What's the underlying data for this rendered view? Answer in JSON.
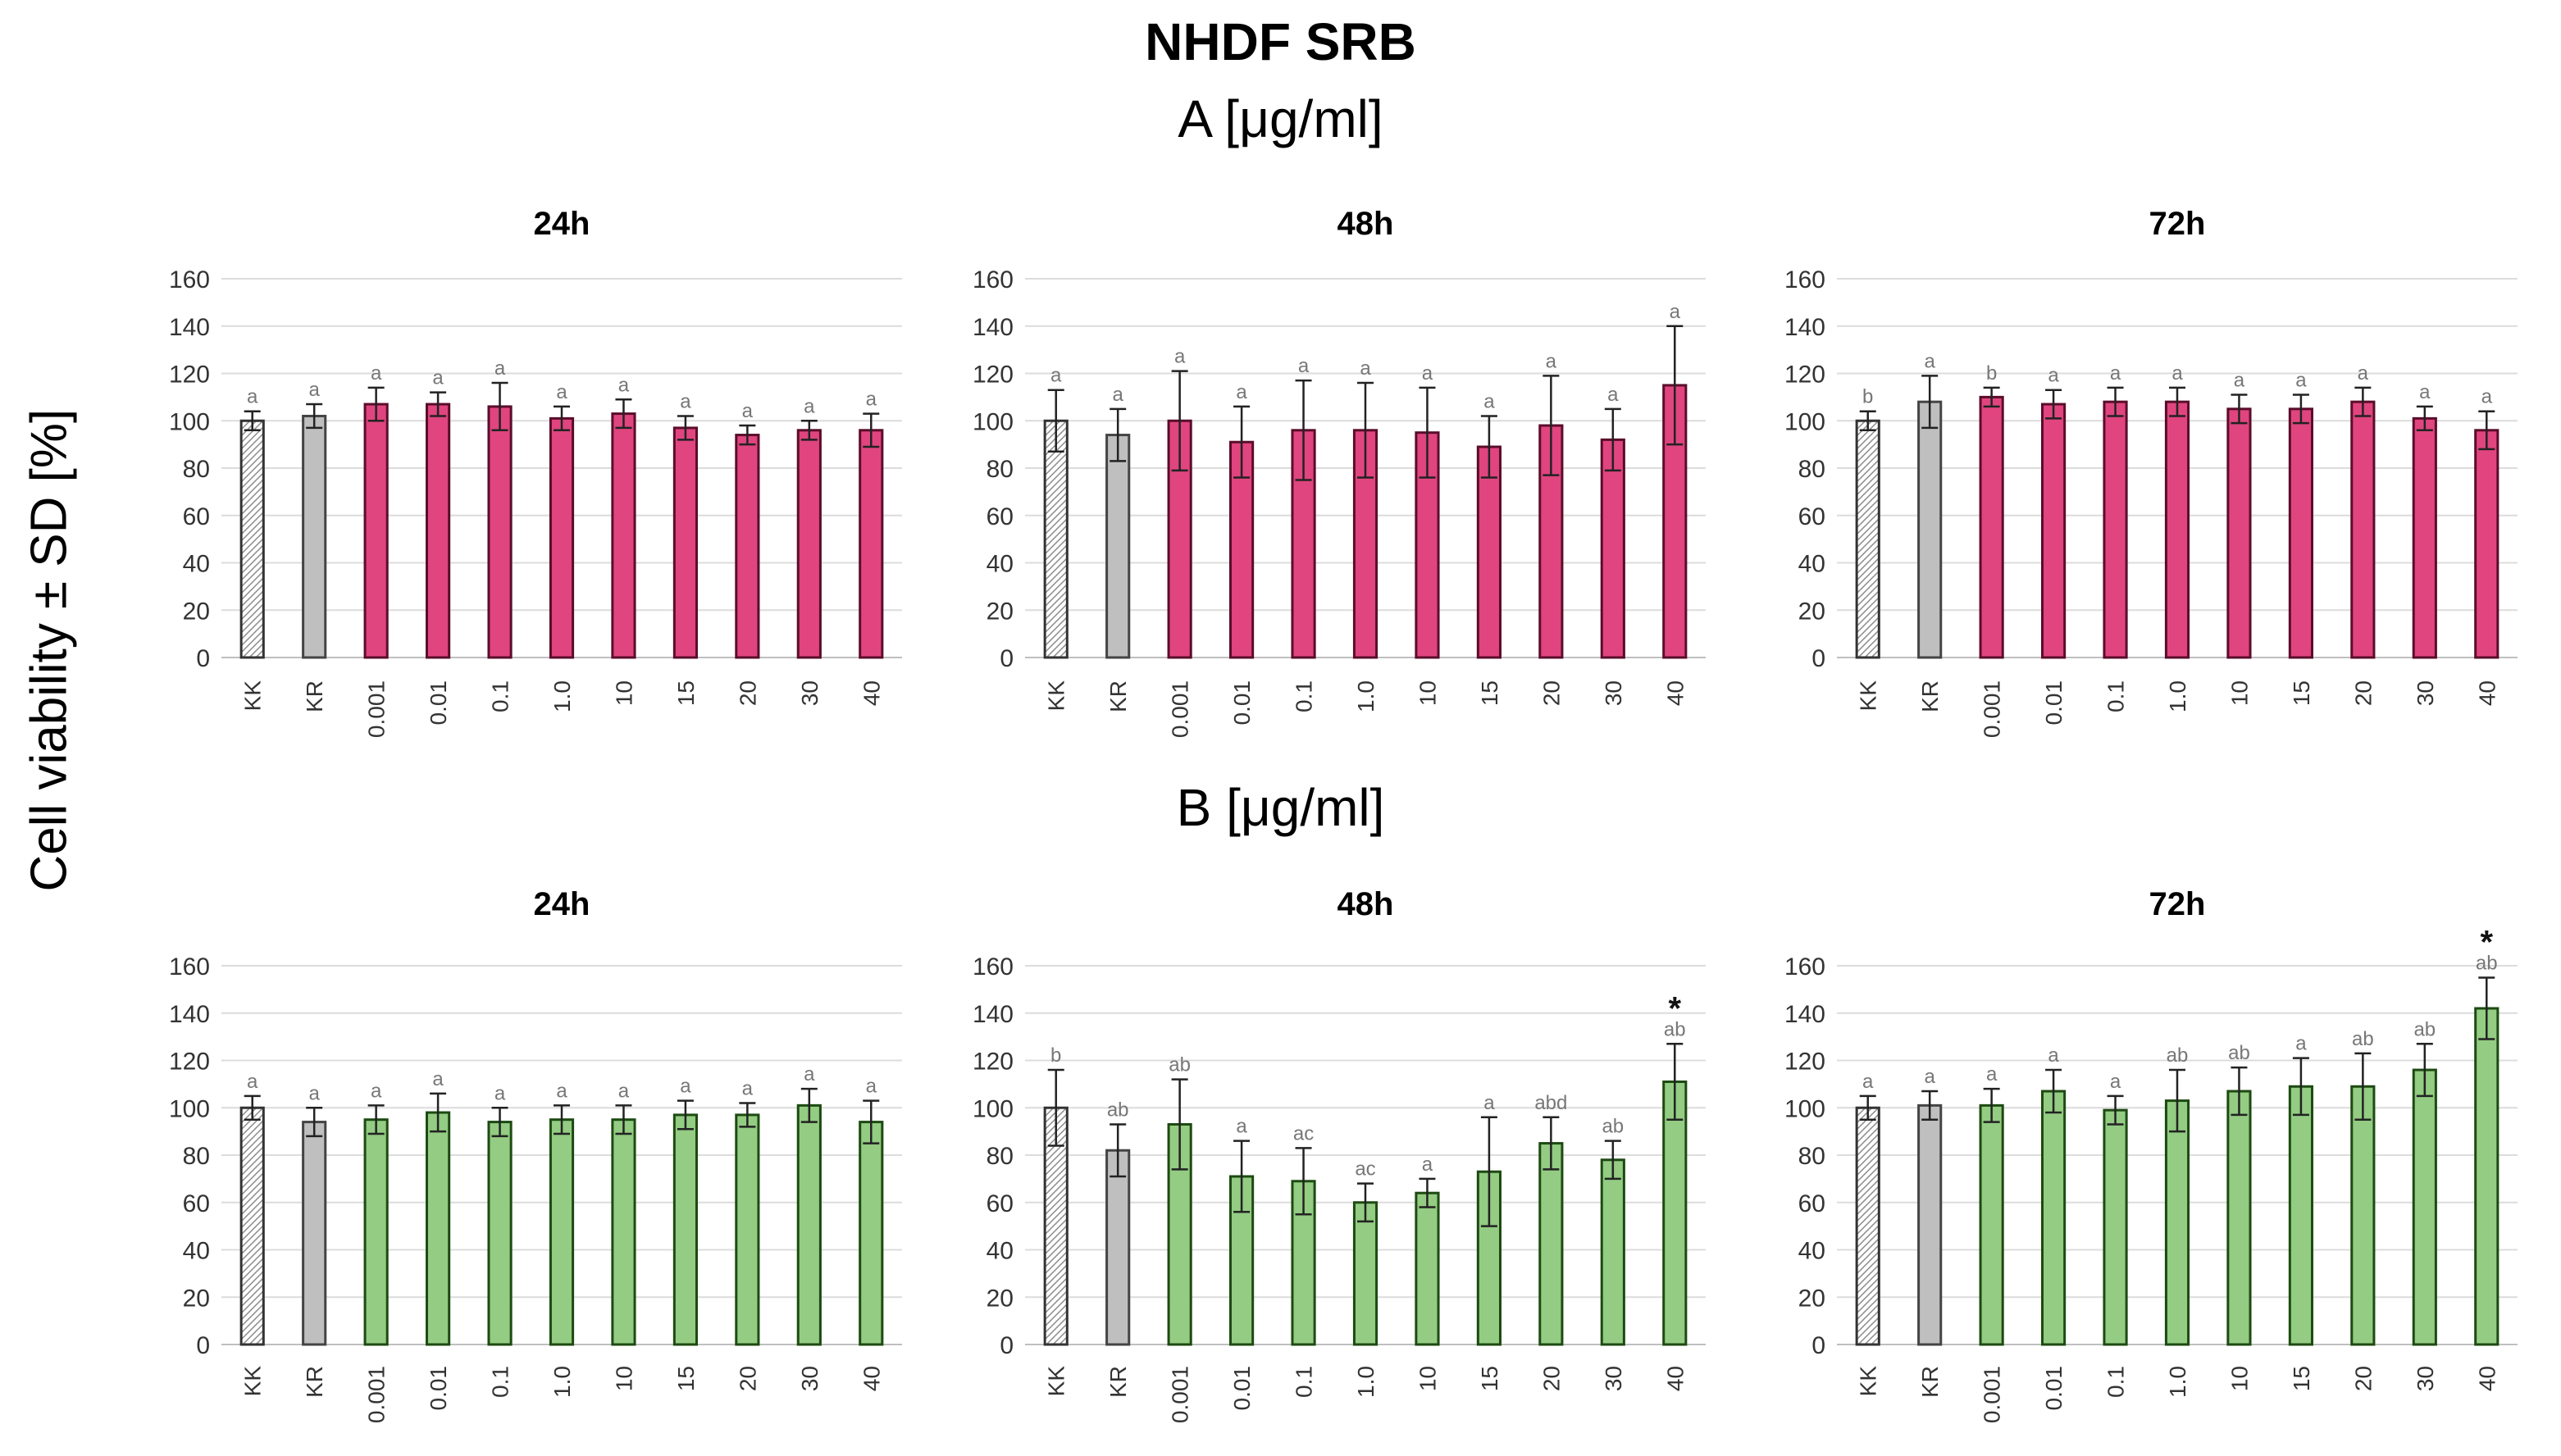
{
  "title": "NHDF SRB",
  "y_axis_label": "Cell viability ± SD [%]",
  "sections": [
    {
      "title": "A [μg/ml]",
      "bar_color": "#e0457f",
      "outline_color": "#5a0d2a"
    },
    {
      "title": "B [μg/ml]",
      "bar_color": "#93cc82",
      "outline_color": "#1d4a12"
    }
  ],
  "control_colors": {
    "KK": "#ffffff",
    "KR": "#bfbfbf"
  },
  "chart_data": [
    {
      "type": "bar",
      "section": "A",
      "title": "24h",
      "categories": [
        "KK",
        "KR",
        "0.001",
        "0.01",
        "0.1",
        "1.0",
        "10",
        "15",
        "20",
        "30",
        "40"
      ],
      "values": [
        100,
        102,
        107,
        107,
        106,
        101,
        103,
        97,
        94,
        96,
        96
      ],
      "errors": [
        4,
        5,
        7,
        5,
        10,
        5,
        6,
        5,
        4,
        4,
        7
      ],
      "labels": [
        "a",
        "a",
        "a",
        "a",
        "a",
        "a",
        "a",
        "a",
        "a",
        "a",
        "a"
      ],
      "stars": [
        false,
        false,
        false,
        false,
        false,
        false,
        false,
        false,
        false,
        false,
        false
      ],
      "ylim": [
        0,
        160
      ],
      "yticks": [
        0,
        20,
        40,
        60,
        80,
        100,
        120,
        140,
        160
      ],
      "xlabel": "",
      "ylabel": "Cell viability ± SD [%]"
    },
    {
      "type": "bar",
      "section": "A",
      "title": "48h",
      "categories": [
        "KK",
        "KR",
        "0.001",
        "0.01",
        "0.1",
        "1.0",
        "10",
        "15",
        "20",
        "30",
        "40"
      ],
      "values": [
        100,
        94,
        100,
        91,
        96,
        96,
        95,
        89,
        98,
        92,
        115
      ],
      "errors": [
        13,
        11,
        21,
        15,
        21,
        20,
        19,
        13,
        21,
        13,
        25
      ],
      "labels": [
        "a",
        "a",
        "a",
        "a",
        "a",
        "a",
        "a",
        "a",
        "a",
        "a",
        "a"
      ],
      "stars": [
        false,
        false,
        false,
        false,
        false,
        false,
        false,
        false,
        false,
        false,
        false
      ],
      "ylim": [
        0,
        160
      ],
      "yticks": [
        0,
        20,
        40,
        60,
        80,
        100,
        120,
        140,
        160
      ],
      "xlabel": "",
      "ylabel": "Cell viability ± SD [%]"
    },
    {
      "type": "bar",
      "section": "A",
      "title": "72h",
      "categories": [
        "KK",
        "KR",
        "0.001",
        "0.01",
        "0.1",
        "1.0",
        "10",
        "15",
        "20",
        "30",
        "40"
      ],
      "values": [
        100,
        108,
        110,
        107,
        108,
        108,
        105,
        105,
        108,
        101,
        96
      ],
      "errors": [
        4,
        11,
        4,
        6,
        6,
        6,
        6,
        6,
        6,
        5,
        8
      ],
      "labels": [
        "b",
        "a",
        "b",
        "a",
        "a",
        "a",
        "a",
        "a",
        "a",
        "a",
        "a"
      ],
      "stars": [
        false,
        false,
        false,
        false,
        false,
        false,
        false,
        false,
        false,
        false,
        false
      ],
      "ylim": [
        0,
        160
      ],
      "yticks": [
        0,
        20,
        40,
        60,
        80,
        100,
        120,
        140,
        160
      ],
      "xlabel": "",
      "ylabel": "Cell viability ± SD [%]"
    },
    {
      "type": "bar",
      "section": "B",
      "title": "24h",
      "categories": [
        "KK",
        "KR",
        "0.001",
        "0.01",
        "0.1",
        "1.0",
        "10",
        "15",
        "20",
        "30",
        "40"
      ],
      "values": [
        100,
        94,
        95,
        98,
        94,
        95,
        95,
        97,
        97,
        101,
        94
      ],
      "errors": [
        5,
        6,
        6,
        8,
        6,
        6,
        6,
        6,
        5,
        7,
        9
      ],
      "labels": [
        "a",
        "a",
        "a",
        "a",
        "a",
        "a",
        "a",
        "a",
        "a",
        "a",
        "a"
      ],
      "stars": [
        false,
        false,
        false,
        false,
        false,
        false,
        false,
        false,
        false,
        false,
        false
      ],
      "ylim": [
        0,
        160
      ],
      "yticks": [
        0,
        20,
        40,
        60,
        80,
        100,
        120,
        140,
        160
      ],
      "xlabel": "",
      "ylabel": "Cell viability ± SD [%]"
    },
    {
      "type": "bar",
      "section": "B",
      "title": "48h",
      "categories": [
        "KK",
        "KR",
        "0.001",
        "0.01",
        "0.1",
        "1.0",
        "10",
        "15",
        "20",
        "30",
        "40"
      ],
      "values": [
        100,
        82,
        93,
        71,
        69,
        60,
        64,
        73,
        85,
        78,
        111
      ],
      "errors": [
        16,
        11,
        19,
        15,
        14,
        8,
        6,
        23,
        11,
        8,
        16
      ],
      "labels": [
        "b",
        "ab",
        "ab",
        "a",
        "ac",
        "ac",
        "a",
        "a",
        "abd",
        "ab",
        "ab"
      ],
      "stars": [
        false,
        false,
        false,
        false,
        false,
        false,
        false,
        false,
        false,
        false,
        true
      ],
      "ylim": [
        0,
        160
      ],
      "yticks": [
        0,
        20,
        40,
        60,
        80,
        100,
        120,
        140,
        160
      ],
      "xlabel": "",
      "ylabel": "Cell viability ± SD [%]"
    },
    {
      "type": "bar",
      "section": "B",
      "title": "72h",
      "categories": [
        "KK",
        "KR",
        "0.001",
        "0.01",
        "0.1",
        "1.0",
        "10",
        "15",
        "20",
        "30",
        "40"
      ],
      "values": [
        100,
        101,
        101,
        107,
        99,
        103,
        107,
        109,
        109,
        116,
        142
      ],
      "errors": [
        5,
        6,
        7,
        9,
        6,
        13,
        10,
        12,
        14,
        11,
        13
      ],
      "labels": [
        "a",
        "a",
        "a",
        "a",
        "a",
        "ab",
        "ab",
        "a",
        "ab",
        "ab",
        "ab"
      ],
      "stars": [
        false,
        false,
        false,
        false,
        false,
        false,
        false,
        false,
        false,
        false,
        true
      ],
      "ylim": [
        0,
        160
      ],
      "yticks": [
        0,
        20,
        40,
        60,
        80,
        100,
        120,
        140,
        160
      ],
      "xlabel": "",
      "ylabel": "Cell viability ± SD [%]"
    }
  ]
}
